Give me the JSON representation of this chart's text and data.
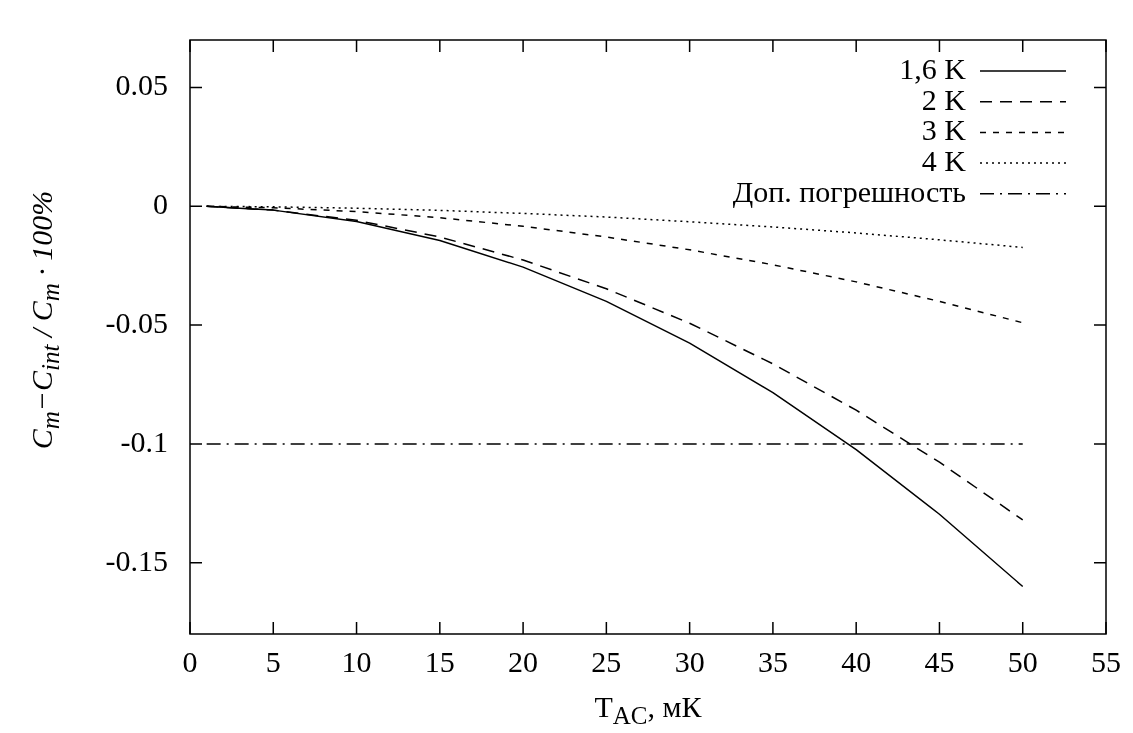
{
  "chart_data": {
    "type": "line",
    "xlabel": "T$_{AC}$, мК",
    "ylabel": "C$_{m}$−C$_{int}$ / C$_{m}$ · 100%",
    "x": [
      1,
      5,
      10,
      15,
      20,
      25,
      30,
      35,
      40,
      45,
      50
    ],
    "xlim": [
      0,
      55
    ],
    "xticks": [
      0,
      5,
      10,
      15,
      20,
      25,
      30,
      35,
      40,
      45,
      50,
      55
    ],
    "ylim": [
      -0.18,
      0.07
    ],
    "yticks": [
      -0.15,
      -0.1,
      -0.05,
      0,
      0.05
    ],
    "grid": false,
    "legend": "top right",
    "marker": "none",
    "series": [
      {
        "name": "1,6 K",
        "color": "#000000",
        "line_style": "solid",
        "values": [
          0,
          -0.0016,
          -0.0064,
          -0.0144,
          -0.0256,
          -0.04,
          -0.0576,
          -0.0784,
          -0.1024,
          -0.1296,
          -0.16
        ]
      },
      {
        "name": "2 K",
        "color": "#000000",
        "line_style": "dashed",
        "values": [
          0,
          -0.0016,
          -0.0059,
          -0.0129,
          -0.0226,
          -0.0347,
          -0.0492,
          -0.0663,
          -0.0858,
          -0.1077,
          -0.132
        ]
      },
      {
        "name": "3 K",
        "color": "#000000",
        "line_style": "dashed",
        "values": [
          0,
          -0.0006,
          -0.0022,
          -0.0048,
          -0.0084,
          -0.0129,
          -0.0183,
          -0.0246,
          -0.0318,
          -0.04,
          -0.049
        ]
      },
      {
        "name": "4 K",
        "color": "#000000",
        "line_style": "dotted",
        "values": [
          0,
          -0.0002,
          -0.0008,
          -0.0017,
          -0.003,
          -0.0045,
          -0.0065,
          -0.0087,
          -0.0112,
          -0.0141,
          -0.0173
        ]
      },
      {
        "name": "Доп. погрешность",
        "color": "#000000",
        "line_style": "dashed",
        "values": [
          -0.1,
          -0.1,
          -0.1,
          -0.1,
          -0.1,
          -0.1,
          -0.1,
          -0.1,
          -0.1,
          -0.1,
          -0.1
        ]
      }
    ]
  }
}
